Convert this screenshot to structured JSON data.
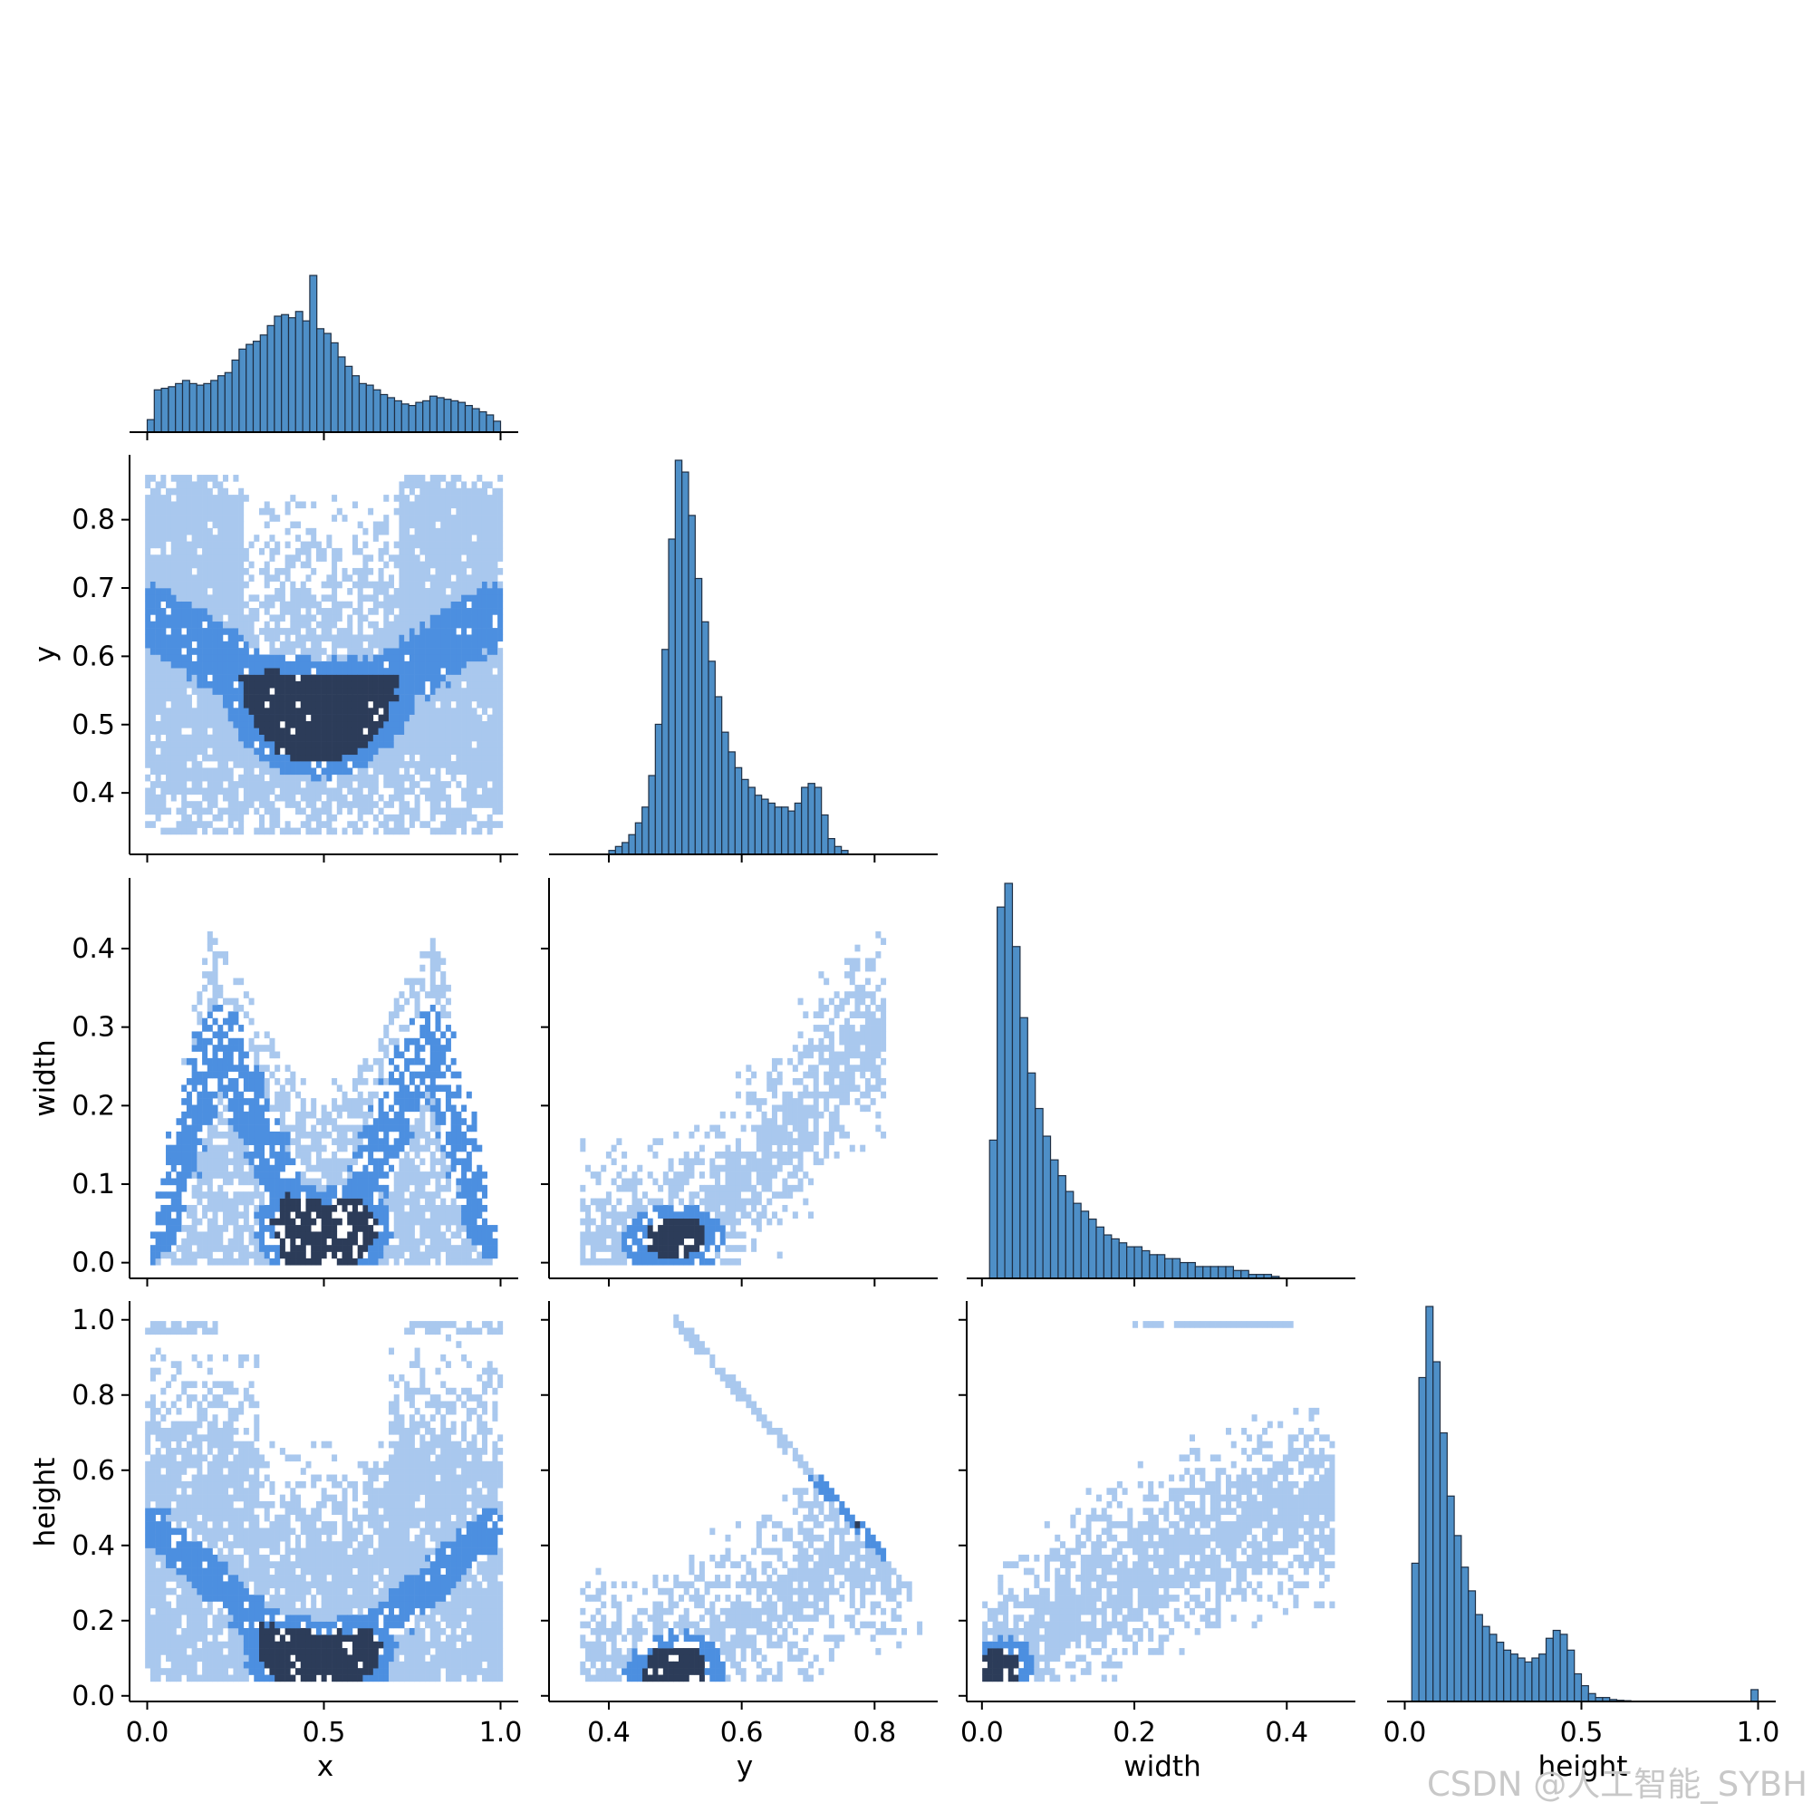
{
  "figure": {
    "variables": [
      "x",
      "y",
      "width",
      "height"
    ],
    "watermark": "CSDN @人工智能_SYBH"
  },
  "colors": {
    "bar_fill": "#4e8fc7",
    "bar_edge": "#1f2f44",
    "heat_light": "#a9c8ee",
    "heat_mid": "#4c8fe0",
    "heat_dark": "#2c3c59"
  },
  "chart_data": [
    {
      "type": "histogram",
      "name": "x-hist",
      "variable": "x",
      "xlim": [
        -0.05,
        1.05
      ],
      "ticks": [
        0.0,
        0.5,
        1.0
      ],
      "bin_width": 0.02,
      "x": [
        0.01,
        0.03,
        0.05,
        0.07,
        0.09,
        0.11,
        0.13,
        0.15,
        0.17,
        0.19,
        0.21,
        0.23,
        0.25,
        0.27,
        0.29,
        0.31,
        0.33,
        0.35,
        0.37,
        0.39,
        0.41,
        0.43,
        0.45,
        0.47,
        0.49,
        0.51,
        0.53,
        0.55,
        0.57,
        0.59,
        0.61,
        0.63,
        0.65,
        0.67,
        0.69,
        0.71,
        0.73,
        0.75,
        0.77,
        0.79,
        0.81,
        0.83,
        0.85,
        0.87,
        0.89,
        0.91,
        0.93,
        0.95,
        0.97,
        0.99
      ],
      "counts": [
        0.08,
        0.27,
        0.28,
        0.29,
        0.31,
        0.33,
        0.31,
        0.3,
        0.31,
        0.33,
        0.36,
        0.38,
        0.46,
        0.53,
        0.56,
        0.58,
        0.62,
        0.68,
        0.74,
        0.75,
        0.73,
        0.77,
        0.71,
        1.0,
        0.66,
        0.63,
        0.57,
        0.48,
        0.42,
        0.36,
        0.31,
        0.3,
        0.27,
        0.24,
        0.22,
        0.2,
        0.18,
        0.17,
        0.19,
        0.2,
        0.23,
        0.22,
        0.21,
        0.2,
        0.19,
        0.17,
        0.15,
        0.13,
        0.11,
        0.07
      ]
    },
    {
      "type": "heatmap",
      "name": "x-vs-y",
      "x_variable": "x",
      "y_variable": "y",
      "xlim": [
        -0.05,
        1.05
      ],
      "ylim": [
        0.31,
        0.895
      ],
      "xticks": [
        0.0,
        0.5,
        1.0
      ],
      "yticks": [
        0.4,
        0.5,
        0.6,
        0.7,
        0.8
      ],
      "x_range": [
        0.0,
        1.0
      ],
      "y_range": [
        0.34,
        0.87
      ],
      "density_ridges": [
        {
          "x": [
            0.02,
            0.2,
            0.38,
            0.47
          ],
          "y": [
            0.66,
            0.6,
            0.53,
            0.5
          ]
        },
        {
          "x": [
            0.98,
            0.8,
            0.6,
            0.52
          ],
          "y": [
            0.66,
            0.6,
            0.53,
            0.5
          ]
        },
        {
          "x": [
            0.06,
            0.12
          ],
          "y": [
            0.77,
            0.77
          ]
        },
        {
          "x": [
            0.82,
            0.88
          ],
          "y": [
            0.75,
            0.75
          ]
        }
      ],
      "peak": {
        "x": 0.48,
        "y": 0.51
      }
    },
    {
      "type": "histogram",
      "name": "y-hist",
      "variable": "y",
      "xlim": [
        0.31,
        0.895
      ],
      "ticks": [
        0.4,
        0.6,
        0.8
      ],
      "bin_width": 0.01,
      "x": [
        0.405,
        0.415,
        0.425,
        0.435,
        0.445,
        0.455,
        0.465,
        0.475,
        0.485,
        0.495,
        0.505,
        0.515,
        0.525,
        0.535,
        0.545,
        0.555,
        0.565,
        0.575,
        0.585,
        0.595,
        0.605,
        0.615,
        0.625,
        0.635,
        0.645,
        0.655,
        0.665,
        0.675,
        0.685,
        0.695,
        0.705,
        0.715,
        0.725,
        0.735,
        0.745,
        0.755,
        0.765,
        0.775,
        0.785,
        0.795,
        0.805,
        0.815
      ],
      "counts": [
        0.01,
        0.02,
        0.03,
        0.05,
        0.08,
        0.12,
        0.2,
        0.33,
        0.52,
        0.8,
        1.0,
        0.97,
        0.86,
        0.7,
        0.59,
        0.49,
        0.4,
        0.31,
        0.26,
        0.22,
        0.19,
        0.17,
        0.15,
        0.14,
        0.13,
        0.12,
        0.12,
        0.11,
        0.13,
        0.17,
        0.18,
        0.17,
        0.1,
        0.04,
        0.02,
        0.01,
        0,
        0,
        0,
        0,
        0,
        0
      ]
    },
    {
      "type": "heatmap",
      "name": "x-vs-width",
      "x_variable": "x",
      "y_variable": "width",
      "xlim": [
        -0.05,
        1.05
      ],
      "ylim": [
        -0.02,
        0.49
      ],
      "xticks": [
        0.0,
        0.5,
        1.0
      ],
      "yticks": [
        0.0,
        0.1,
        0.2,
        0.3,
        0.4
      ],
      "envelope": {
        "x": [
          0.0,
          0.18,
          0.4,
          0.5,
          0.6,
          0.82,
          1.0
        ],
        "width_max": [
          0.0,
          0.4,
          0.22,
          0.2,
          0.22,
          0.4,
          0.0
        ]
      },
      "density_ridges": [
        {
          "x": [
            0.02,
            0.2,
            0.4,
            0.47
          ],
          "y": [
            0.03,
            0.3,
            0.08,
            0.03
          ]
        },
        {
          "x": [
            0.98,
            0.8,
            0.6,
            0.53
          ],
          "y": [
            0.03,
            0.3,
            0.08,
            0.03
          ]
        }
      ],
      "peak": {
        "x": 0.5,
        "y": 0.03
      }
    },
    {
      "type": "heatmap",
      "name": "y-vs-width",
      "x_variable": "y",
      "y_variable": "width",
      "xlim": [
        0.31,
        0.895
      ],
      "ylim": [
        -0.02,
        0.49
      ],
      "xticks": [
        0.4,
        0.6,
        0.8
      ],
      "yticks": [
        0.0,
        0.1,
        0.2,
        0.3,
        0.4
      ],
      "trend": {
        "y": [
          0.42,
          0.5,
          0.6,
          0.7,
          0.78
        ],
        "width": [
          0.01,
          0.03,
          0.1,
          0.2,
          0.28
        ]
      },
      "peak": {
        "x": 0.5,
        "y": 0.03
      }
    },
    {
      "type": "histogram",
      "name": "width-hist",
      "variable": "width",
      "xlim": [
        -0.02,
        0.49
      ],
      "ticks": [
        0.0,
        0.2,
        0.4
      ],
      "bin_width": 0.01,
      "x": [
        0.015,
        0.025,
        0.035,
        0.045,
        0.055,
        0.065,
        0.075,
        0.085,
        0.095,
        0.105,
        0.115,
        0.125,
        0.135,
        0.145,
        0.155,
        0.165,
        0.175,
        0.185,
        0.195,
        0.205,
        0.215,
        0.225,
        0.235,
        0.245,
        0.255,
        0.265,
        0.275,
        0.285,
        0.295,
        0.305,
        0.315,
        0.325,
        0.335,
        0.345,
        0.355,
        0.365,
        0.375,
        0.385
      ],
      "counts": [
        0.35,
        0.94,
        1.0,
        0.84,
        0.66,
        0.52,
        0.43,
        0.36,
        0.3,
        0.26,
        0.22,
        0.19,
        0.17,
        0.15,
        0.13,
        0.11,
        0.1,
        0.09,
        0.08,
        0.08,
        0.07,
        0.06,
        0.06,
        0.05,
        0.05,
        0.04,
        0.04,
        0.03,
        0.03,
        0.03,
        0.03,
        0.03,
        0.02,
        0.02,
        0.01,
        0.01,
        0.01,
        0.005
      ]
    },
    {
      "type": "heatmap",
      "name": "x-vs-height",
      "x_variable": "x",
      "y_variable": "height",
      "xlim": [
        -0.05,
        1.05
      ],
      "ylim": [
        -0.015,
        1.05
      ],
      "xticks": [
        0.0,
        0.5,
        1.0
      ],
      "yticks": [
        0.0,
        0.2,
        0.4,
        0.6,
        0.8,
        1.0
      ],
      "density_ridges": [
        {
          "x": [
            0.02,
            0.2,
            0.4,
            0.47
          ],
          "y": [
            0.45,
            0.3,
            0.12,
            0.08
          ]
        },
        {
          "x": [
            0.98,
            0.8,
            0.6,
            0.53
          ],
          "y": [
            0.45,
            0.3,
            0.12,
            0.08
          ]
        }
      ],
      "peak": {
        "x": 0.48,
        "y": 0.08
      }
    },
    {
      "type": "heatmap",
      "name": "y-vs-height",
      "x_variable": "y",
      "y_variable": "height",
      "xlim": [
        0.31,
        0.895
      ],
      "ylim": [
        -0.015,
        1.05
      ],
      "xticks": [
        0.4,
        0.6,
        0.8
      ],
      "yticks": [
        0.0,
        0.2,
        0.4,
        0.6,
        0.8,
        1.0
      ],
      "diagonal": {
        "y": [
          0.5,
          0.82
        ],
        "height": [
          1.0,
          0.36
        ]
      },
      "trend": {
        "y": [
          0.45,
          0.5,
          0.6,
          0.7,
          0.76
        ],
        "height": [
          0.04,
          0.07,
          0.17,
          0.31,
          0.42
        ]
      },
      "peak": {
        "x": 0.5,
        "y": 0.07
      }
    },
    {
      "type": "heatmap",
      "name": "width-vs-height",
      "x_variable": "width",
      "y_variable": "height",
      "xlim": [
        -0.02,
        0.49
      ],
      "ylim": [
        -0.015,
        1.05
      ],
      "xticks": [
        0.0,
        0.2,
        0.4
      ],
      "yticks": [
        0.0,
        0.2,
        0.4,
        0.6,
        0.8,
        1.0
      ],
      "trend": {
        "width": [
          0.01,
          0.05,
          0.15,
          0.25,
          0.35,
          0.42
        ],
        "height": [
          0.05,
          0.12,
          0.27,
          0.38,
          0.46,
          0.5
        ]
      },
      "peak": {
        "x": 0.02,
        "y": 0.07
      }
    },
    {
      "type": "histogram",
      "name": "height-hist",
      "variable": "height",
      "xlim": [
        -0.05,
        1.05
      ],
      "ticks": [
        0.0,
        0.5,
        1.0
      ],
      "bin_width": 0.02,
      "x": [
        0.03,
        0.05,
        0.07,
        0.09,
        0.11,
        0.13,
        0.15,
        0.17,
        0.19,
        0.21,
        0.23,
        0.25,
        0.27,
        0.29,
        0.31,
        0.33,
        0.35,
        0.37,
        0.39,
        0.41,
        0.43,
        0.45,
        0.47,
        0.49,
        0.51,
        0.53,
        0.55,
        0.57,
        0.59,
        0.61,
        0.63,
        0.65,
        0.67,
        0.69,
        0.71,
        0.73,
        0.75,
        0.77,
        0.79,
        0.81,
        0.83,
        0.85,
        0.87,
        0.89,
        0.91,
        0.93,
        0.95,
        0.97,
        0.99
      ],
      "counts": [
        0.35,
        0.82,
        1.0,
        0.86,
        0.68,
        0.52,
        0.42,
        0.34,
        0.28,
        0.22,
        0.19,
        0.17,
        0.15,
        0.13,
        0.12,
        0.11,
        0.1,
        0.11,
        0.12,
        0.16,
        0.18,
        0.17,
        0.13,
        0.07,
        0.04,
        0.02,
        0.01,
        0.01,
        0.005,
        0.003,
        0.002,
        0,
        0,
        0,
        0,
        0,
        0,
        0,
        0,
        0,
        0,
        0,
        0,
        0,
        0,
        0,
        0,
        0,
        0.03
      ]
    }
  ]
}
